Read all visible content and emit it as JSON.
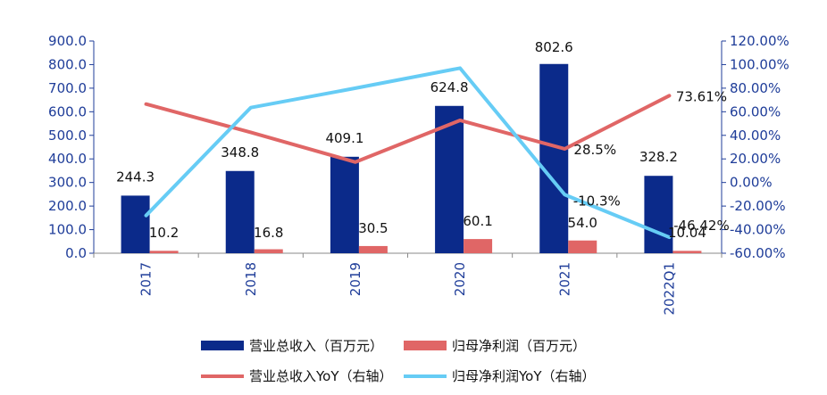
{
  "chart_data": {
    "type": "bar",
    "categories": [
      "2017",
      "2018",
      "2019",
      "2020",
      "2021",
      "2022Q1"
    ],
    "y_left": {
      "min": 0,
      "max": 900,
      "step": 100,
      "ticks": [
        "0.0",
        "100.0",
        "200.0",
        "300.0",
        "400.0",
        "500.0",
        "600.0",
        "700.0",
        "800.0",
        "900.0"
      ]
    },
    "y_right": {
      "min": -60,
      "max": 120,
      "step": 20,
      "ticks": [
        "-60.00%",
        "-40.00%",
        "-20.00%",
        "0.00%",
        "20.00%",
        "40.00%",
        "60.00%",
        "80.00%",
        "100.00%",
        "120.00%"
      ]
    },
    "series": [
      {
        "name": "营业总收入（百万元）",
        "kind": "bar",
        "axis": "left",
        "color": "#0b2a8a",
        "values": [
          244.3,
          348.8,
          409.1,
          624.8,
          802.6,
          328.2
        ],
        "labels": [
          "244.3",
          "348.8",
          "409.1",
          "624.8",
          "802.6",
          "328.2"
        ]
      },
      {
        "name": "归母净利润（百万元）",
        "kind": "bar",
        "axis": "left",
        "color": "#e06666",
        "values": [
          10.2,
          16.8,
          30.5,
          60.1,
          54.0,
          10.04
        ],
        "labels": [
          "10.2",
          "16.8",
          "30.5",
          "60.1",
          "54.0",
          "10.04"
        ]
      },
      {
        "name": "营业总收入YoY（右轴）",
        "kind": "line",
        "axis": "right",
        "color": "#e06666",
        "values": [
          66.5,
          42.5,
          17.3,
          52.7,
          28.5,
          73.61
        ],
        "labels": [
          "",
          "",
          "",
          "",
          "28.5%",
          "73.61%"
        ]
      },
      {
        "name": "归母净利润YoY（右轴）",
        "kind": "line",
        "axis": "right",
        "color": "#66ccf5",
        "values": [
          -28.0,
          63.5,
          80.0,
          97.0,
          -10.3,
          -46.42
        ],
        "labels": [
          "",
          "",
          "",
          "",
          "-10.3%",
          "-46.42%"
        ]
      }
    ],
    "legend_position": "bottom",
    "grid": false
  }
}
